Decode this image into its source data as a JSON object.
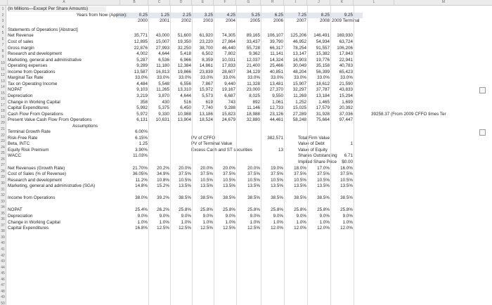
{
  "col_letters": [
    "A",
    "B",
    "C",
    "D",
    "E",
    "F",
    "G",
    "H",
    "I",
    "J",
    "K",
    "L",
    "M"
  ],
  "header": {
    "title_line1": "(In Millions—Except Per Share Amounts)",
    "title_line2": "Years from Now (Approx):",
    "years_from_now": [
      "0.25",
      "1.25",
      "2.25",
      "3.25",
      "4.25",
      "5.25",
      "6.25",
      "7.25",
      "8.25",
      "9.25"
    ],
    "fiscal_years": [
      "2000",
      "2001",
      "2002",
      "2003",
      "2004",
      "2005",
      "2006",
      "2007",
      "2008",
      "2009 Terminal"
    ]
  },
  "statement_rows": [
    {
      "n": "4",
      "label": "Statements of Operations [Abstract]",
      "vals": []
    },
    {
      "n": "5",
      "label": "Net Revenue",
      "vals": [
        "35,771",
        "43,000",
        "51,600",
        "61,920",
        "74,305",
        "89,165",
        "106,107",
        "125,206",
        "146,491",
        "169,930"
      ]
    },
    {
      "n": "6",
      "label": "Cost of sales",
      "vals": [
        "12,895",
        "15,007",
        "19,350",
        "23,220",
        "27,864",
        "33,437",
        "39,790",
        "46,952",
        "54,934",
        "63,724"
      ]
    },
    {
      "n": "7",
      "label": "Gross margin",
      "vals": [
        "22,876",
        "27,993",
        "32,250",
        "38,700",
        "46,440",
        "55,728",
        "66,317",
        "78,254",
        "91,557",
        "106,206"
      ]
    },
    {
      "n": "8",
      "label": "Research and development",
      "vals": [
        "4,002",
        "4,644",
        "5,418",
        "6,502",
        "7,802",
        "9,362",
        "11,141",
        "13,147",
        "15,382",
        "17,843"
      ]
    },
    {
      "n": "9",
      "label": "Marketing, general and administrative",
      "vals": [
        "5,287",
        "6,536",
        "6,966",
        "8,359",
        "10,031",
        "12,037",
        "14,324",
        "16,903",
        "19,776",
        "22,941"
      ]
    },
    {
      "n": "10",
      "label": "Operating expenses",
      "vals": [
        "9,289",
        "11,180",
        "12,384",
        "14,861",
        "17,833",
        "21,400",
        "25,466",
        "30,049",
        "35,158",
        "40,783"
      ]
    },
    {
      "n": "11",
      "label": "Income from Operations",
      "vals": [
        "13,587",
        "16,813",
        "19,866",
        "23,839",
        "28,607",
        "34,129",
        "40,851",
        "48,204",
        "56,399",
        "65,423"
      ]
    },
    {
      "n": "12",
      "label": "Marginal Tax Rate",
      "vals": [
        "33.0%",
        "33.0%",
        "33.0%",
        "33.0%",
        "33.0%",
        "33.0%",
        "33.0%",
        "33.0%",
        "33.0%",
        "33.0%"
      ]
    },
    {
      "n": "13",
      "label": "Tax on Operating Income",
      "vals": [
        "4,484",
        "5,548",
        "6,556",
        "7,867",
        "9,440",
        "11,328",
        "13,481",
        "15,907",
        "18,612",
        "21,590"
      ]
    },
    {
      "n": "14",
      "label": "NOPAT",
      "vals": [
        "9,103",
        "11,265",
        "13,310",
        "15,972",
        "19,167",
        "23,000",
        "27,370",
        "32,297",
        "37,787",
        "43,833"
      ]
    },
    {
      "n": "15",
      "label": "Depreciation",
      "vals": [
        "3,219",
        "3,870",
        "4,644",
        "5,573",
        "6,687",
        "8,025",
        "9,550",
        "11,269",
        "13,184",
        "15,294"
      ]
    },
    {
      "n": "16",
      "label": "Change in Working Capital",
      "vals": [
        "358",
        "430",
        "516",
        "619",
        "743",
        "892",
        "1,061",
        "1,252",
        "1,465",
        "1,699"
      ]
    },
    {
      "n": "17",
      "label": "Capital Expenditures",
      "vals": [
        "5,992",
        "5,375",
        "6,450",
        "7,740",
        "9,288",
        "11,146",
        "12,733",
        "15,025",
        "17,579",
        "20,392"
      ]
    },
    {
      "n": "18",
      "label": "Cash Flow From Operations",
      "vals": [
        "5,972",
        "9,330",
        "10,988",
        "13,186",
        "15,823",
        "18,988",
        "23,126",
        "27,289",
        "31,928",
        "37,036"
      ]
    },
    {
      "n": "19",
      "label": "Present Value Cash Flow From Operations",
      "vals": [
        "6,131",
        "10,631",
        "13,904",
        "18,524",
        "24,679",
        "32,880",
        "44,461",
        "58,248",
        "75,664",
        "97,447"
      ]
    }
  ],
  "cfo_note": "39258.37 (From 2009 CFFO times Ter",
  "assumptions_header": "Assumptions",
  "assumptions": [
    {
      "n": "21",
      "label": "Terminal Growth Rate",
      "val": "6.00%"
    },
    {
      "n": "22",
      "label": "Risk-Free Rate",
      "val": "6.15%"
    },
    {
      "n": "23",
      "label": "Beta, INTC",
      "val": "1.25"
    },
    {
      "n": "24",
      "label": "Equity Risk Premium",
      "val": "3.90%"
    },
    {
      "n": "25",
      "label": "WACC",
      "val": "11.03%"
    }
  ],
  "pv_block": {
    "labels": [
      "PV of CFFO",
      "PV of Terminal Value",
      "Excess Cash and ST securities"
    ],
    "values": [
      "382,571",
      "",
      "13"
    ]
  },
  "value_block": {
    "labels": [
      "Total Firm Value",
      "Value of Debt",
      "Value of Equity",
      "Shares Outstanding",
      "Implied Share Price"
    ],
    "values": [
      "",
      "1",
      "",
      "6.71",
      "$0.00"
    ]
  },
  "pct_rows": [
    {
      "n": "27",
      "label": "Net Revenues (Growth Rate)",
      "vals": [
        "21.70%",
        "20.2%",
        "20.0%",
        "20.0%",
        "20.0%",
        "20.0%",
        "19.0%",
        "18.0%",
        "17.0%",
        "16.0%"
      ]
    },
    {
      "n": "28",
      "label": "Cost of Sales (% of Revenue)",
      "vals": [
        "36.05%",
        "34.9%",
        "37.5%",
        "37.5%",
        "37.5%",
        "37.5%",
        "37.5%",
        "37.5%",
        "37.5%",
        "37.5%"
      ]
    },
    {
      "n": "29",
      "label": "Research and development",
      "vals": [
        "11.2%",
        "10.8%",
        "10.5%",
        "10.5%",
        "10.5%",
        "10.5%",
        "10.5%",
        "10.5%",
        "10.5%",
        "10.5%"
      ]
    },
    {
      "n": "30",
      "label": "Marketing, general and administrative (SGA)",
      "vals": [
        "14.8%",
        "15.2%",
        "13.5%",
        "13.5%",
        "13.5%",
        "13.5%",
        "13.5%",
        "13.5%",
        "13.5%",
        "13.5%"
      ]
    },
    {
      "n": "31",
      "label": "",
      "vals": []
    },
    {
      "n": "32",
      "label": "Income from Operations",
      "vals": [
        "38.0%",
        "39.2%",
        "38.5%",
        "38.5%",
        "38.5%",
        "38.5%",
        "38.5%",
        "38.5%",
        "38.5%",
        "38.5%"
      ]
    },
    {
      "n": "33",
      "label": "",
      "vals": []
    },
    {
      "n": "34",
      "label": "NOPAT",
      "vals": [
        "25.4%",
        "26.2%",
        "25.8%",
        "25.8%",
        "25.8%",
        "25.8%",
        "25.8%",
        "25.8%",
        "25.8%",
        "25.8%"
      ]
    },
    {
      "n": "35",
      "label": "Depreciation",
      "vals": [
        "9.0%",
        "9.0%",
        "9.0%",
        "9.0%",
        "9.0%",
        "9.0%",
        "9.0%",
        "9.0%",
        "9.0%",
        "9.0%"
      ]
    },
    {
      "n": "36",
      "label": "Change in Working Capital",
      "vals": [
        "1.0%",
        "1.0%",
        "1.0%",
        "1.0%",
        "1.0%",
        "1.0%",
        "1.0%",
        "1.0%",
        "1.0%",
        "1.0%"
      ]
    },
    {
      "n": "37",
      "label": "Capital Expenditures",
      "vals": [
        "16.8%",
        "12.5%",
        "12.5%",
        "12.5%",
        "12.5%",
        "12.5%",
        "12.0%",
        "12.0%",
        "12.0%",
        "12.0%"
      ]
    }
  ],
  "colors": {
    "header_bg": "#ececec",
    "input_highlight": "#e3e8f0",
    "gray_fill": "#efefef"
  }
}
